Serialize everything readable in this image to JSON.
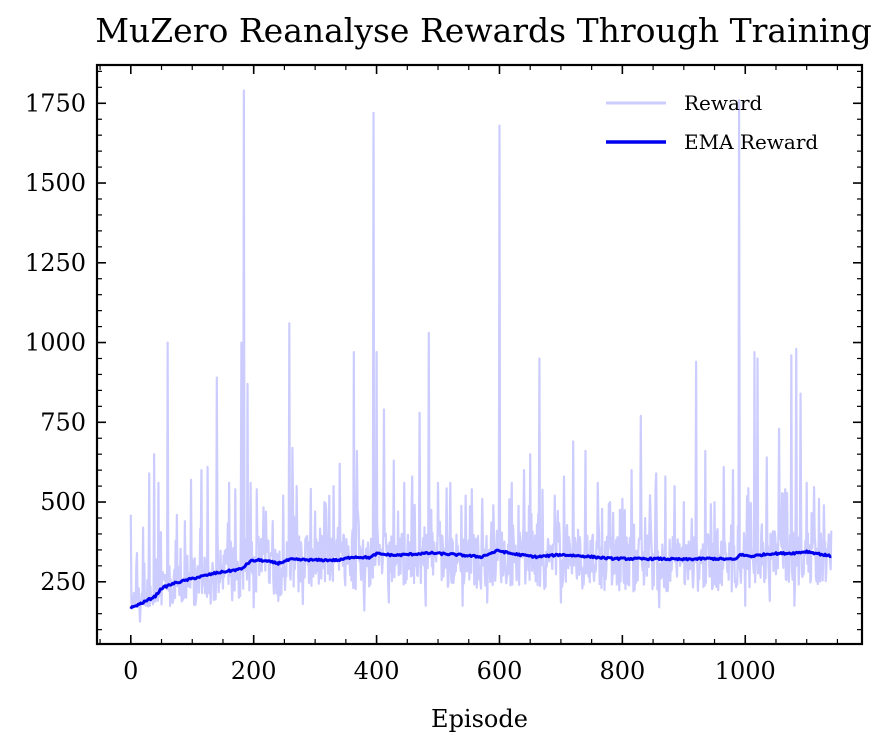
{
  "chart_data": {
    "type": "line",
    "title": "MuZero Reanalyse Rewards Through Training",
    "xlabel": "Episode",
    "ylabel": "",
    "xlim": [
      -55,
      1190
    ],
    "ylim": [
      55,
      1870
    ],
    "xticks": [
      0,
      200,
      400,
      600,
      800,
      1000
    ],
    "yticks": [
      250,
      500,
      750,
      1000,
      1250,
      1500,
      1750
    ],
    "grid": false,
    "legend_position": "top-right",
    "series": [
      {
        "name": "Reward",
        "color": "#ccccff",
        "noise_amplitude": 55,
        "spikes": [
          [
            0,
            460
          ],
          [
            10,
            340
          ],
          [
            20,
            420
          ],
          [
            30,
            590
          ],
          [
            38,
            650
          ],
          [
            45,
            560
          ],
          [
            60,
            1000
          ],
          [
            75,
            460
          ],
          [
            88,
            440
          ],
          [
            98,
            570
          ],
          [
            115,
            600
          ],
          [
            125,
            610
          ],
          [
            140,
            890
          ],
          [
            160,
            560
          ],
          [
            170,
            540
          ],
          [
            180,
            1000
          ],
          [
            184,
            1790
          ],
          [
            190,
            870
          ],
          [
            195,
            560
          ],
          [
            205,
            540
          ],
          [
            220,
            470
          ],
          [
            248,
            520
          ],
          [
            258,
            1060
          ],
          [
            263,
            670
          ],
          [
            270,
            550
          ],
          [
            300,
            470
          ],
          [
            315,
            500
          ],
          [
            330,
            550
          ],
          [
            340,
            620
          ],
          [
            363,
            970
          ],
          [
            368,
            660
          ],
          [
            395,
            1720
          ],
          [
            400,
            970
          ],
          [
            412,
            790
          ],
          [
            428,
            630
          ],
          [
            445,
            560
          ],
          [
            458,
            580
          ],
          [
            470,
            780
          ],
          [
            485,
            1030
          ],
          [
            500,
            560
          ],
          [
            520,
            560
          ],
          [
            545,
            520
          ],
          [
            555,
            540
          ],
          [
            572,
            510
          ],
          [
            590,
            490
          ],
          [
            600,
            1680
          ],
          [
            620,
            560
          ],
          [
            640,
            600
          ],
          [
            650,
            650
          ],
          [
            665,
            950
          ],
          [
            690,
            520
          ],
          [
            705,
            580
          ],
          [
            720,
            690
          ],
          [
            740,
            660
          ],
          [
            760,
            560
          ],
          [
            780,
            500
          ],
          [
            800,
            510
          ],
          [
            815,
            600
          ],
          [
            830,
            770
          ],
          [
            855,
            590
          ],
          [
            870,
            580
          ],
          [
            885,
            550
          ],
          [
            900,
            500
          ],
          [
            920,
            940
          ],
          [
            935,
            660
          ],
          [
            950,
            500
          ],
          [
            965,
            610
          ],
          [
            980,
            600
          ],
          [
            990,
            1760
          ],
          [
            1015,
            970
          ],
          [
            1020,
            950
          ],
          [
            1035,
            640
          ],
          [
            1055,
            730
          ],
          [
            1065,
            540
          ],
          [
            1075,
            960
          ],
          [
            1083,
            980
          ],
          [
            1090,
            840
          ],
          [
            1100,
            560
          ],
          [
            1120,
            510
          ],
          [
            1128,
            490
          ],
          [
            1140,
            410
          ]
        ],
        "dips": [
          [
            15,
            125
          ],
          [
            25,
            175
          ],
          [
            35,
            200
          ],
          [
            60,
            175
          ],
          [
            90,
            200
          ],
          [
            140,
            210
          ],
          [
            200,
            170
          ],
          [
            240,
            190
          ],
          [
            280,
            180
          ],
          [
            300,
            160
          ],
          [
            340,
            175
          ],
          [
            380,
            160
          ],
          [
            420,
            185
          ],
          [
            480,
            175
          ],
          [
            500,
            150
          ],
          [
            540,
            175
          ],
          [
            580,
            185
          ],
          [
            620,
            190
          ],
          [
            640,
            165
          ],
          [
            700,
            185
          ],
          [
            740,
            180
          ],
          [
            780,
            165
          ],
          [
            830,
            150
          ],
          [
            860,
            170
          ],
          [
            900,
            175
          ],
          [
            950,
            190
          ],
          [
            1000,
            175
          ],
          [
            1040,
            190
          ],
          [
            1080,
            175
          ],
          [
            1100,
            175
          ],
          [
            1140,
            210
          ]
        ]
      },
      {
        "name": "EMA Reward",
        "color": "#0000ee",
        "points": [
          [
            0,
            168
          ],
          [
            20,
            185
          ],
          [
            40,
            205
          ],
          [
            50,
            230
          ],
          [
            70,
            245
          ],
          [
            100,
            260
          ],
          [
            140,
            278
          ],
          [
            180,
            290
          ],
          [
            195,
            315
          ],
          [
            210,
            318
          ],
          [
            240,
            308
          ],
          [
            260,
            320
          ],
          [
            300,
            318
          ],
          [
            340,
            318
          ],
          [
            360,
            328
          ],
          [
            390,
            326
          ],
          [
            400,
            338
          ],
          [
            430,
            333
          ],
          [
            470,
            338
          ],
          [
            490,
            340
          ],
          [
            530,
            335
          ],
          [
            570,
            328
          ],
          [
            598,
            348
          ],
          [
            620,
            338
          ],
          [
            660,
            328
          ],
          [
            700,
            335
          ],
          [
            740,
            330
          ],
          [
            780,
            323
          ],
          [
            820,
            322
          ],
          [
            860,
            322
          ],
          [
            900,
            320
          ],
          [
            940,
            323
          ],
          [
            985,
            320
          ],
          [
            990,
            335
          ],
          [
            1010,
            330
          ],
          [
            1040,
            338
          ],
          [
            1080,
            340
          ],
          [
            1100,
            345
          ],
          [
            1140,
            330
          ]
        ]
      }
    ]
  }
}
